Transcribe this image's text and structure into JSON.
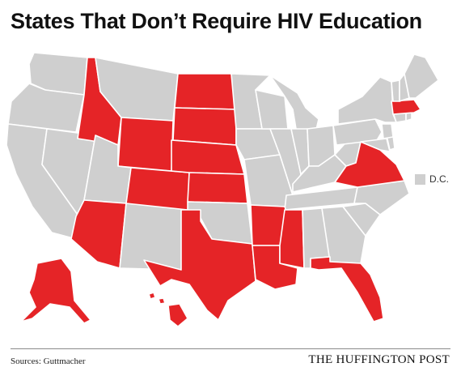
{
  "title": "States That Don’t Require HIV Education",
  "legend": {
    "label": "D.C."
  },
  "footer": {
    "sources": "Sources: Guttmacher",
    "brand": "THE HUFFINGTON POST"
  },
  "colors": {
    "highlight": "#e52427",
    "other": "#cfcfcf",
    "borders": "#ffffff"
  },
  "highlighted_states": [
    "Idaho",
    "Wyoming",
    "North Dakota",
    "South Dakota",
    "Nebraska",
    "Colorado",
    "Kansas",
    "Arizona",
    "Texas",
    "Arkansas",
    "Louisiana",
    "Mississippi",
    "Florida",
    "Virginia",
    "Massachusetts",
    "Alaska",
    "Hawaii"
  ]
}
